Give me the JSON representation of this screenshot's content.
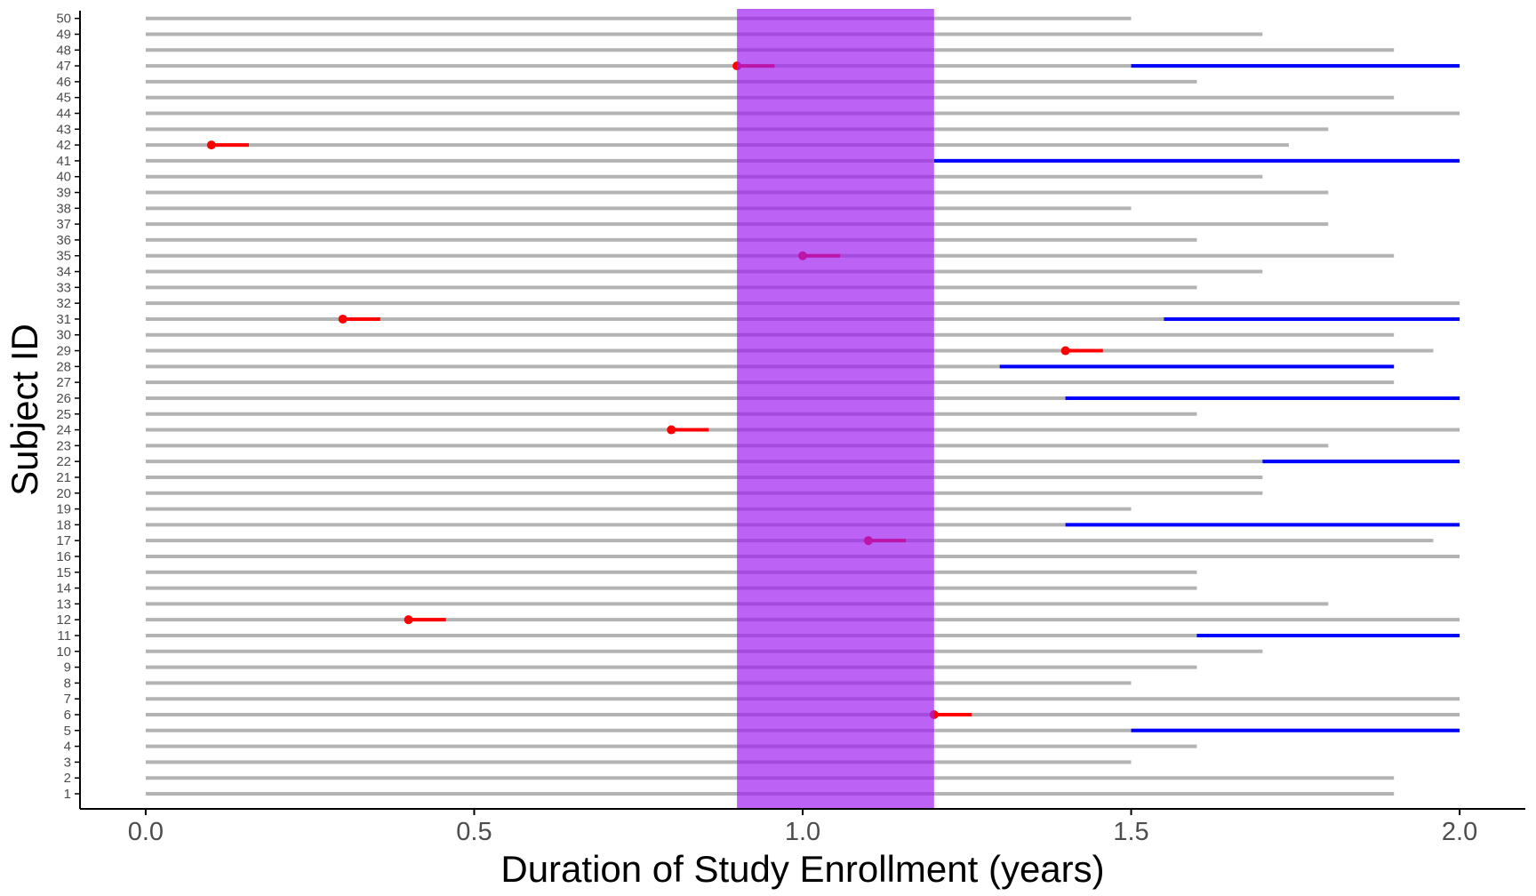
{
  "chart_data": {
    "type": "swimmer",
    "xlabel": "Duration of Study Enrollment (years)",
    "ylabel": "Subject ID",
    "xlim": [
      -0.1,
      2.1
    ],
    "xticks": [
      0.0,
      0.5,
      1.0,
      1.5,
      2.0
    ],
    "xtick_labels": [
      "0.0",
      "0.5",
      "1.0",
      "1.5",
      "2.0"
    ],
    "subjects": [
      1,
      2,
      3,
      4,
      5,
      6,
      7,
      8,
      9,
      10,
      11,
      12,
      13,
      14,
      15,
      16,
      17,
      18,
      19,
      20,
      21,
      22,
      23,
      24,
      25,
      26,
      27,
      28,
      29,
      30,
      31,
      32,
      33,
      34,
      35,
      36,
      37,
      38,
      39,
      40,
      41,
      42,
      43,
      44,
      45,
      46,
      47,
      48,
      49,
      50
    ],
    "enrollment_end": [
      1.9,
      1.9,
      1.5,
      1.6,
      2.0,
      2.0,
      2.0,
      1.5,
      1.6,
      1.7,
      2.0,
      2.0,
      1.8,
      1.6,
      1.6,
      2.0,
      1.96,
      2.0,
      1.5,
      1.7,
      1.7,
      2.0,
      1.8,
      2.0,
      1.6,
      2.0,
      1.9,
      1.9,
      1.96,
      1.9,
      2.0,
      2.0,
      1.6,
      1.7,
      1.9,
      1.6,
      1.8,
      1.5,
      1.8,
      1.7,
      2.0,
      1.74,
      1.8,
      2.0,
      1.9,
      1.6,
      2.0,
      1.9,
      1.7,
      1.5
    ],
    "blue_segments": [
      {
        "subject": 5,
        "start": 1.5,
        "end": 2.0
      },
      {
        "subject": 11,
        "start": 1.6,
        "end": 2.0
      },
      {
        "subject": 18,
        "start": 1.4,
        "end": 2.0
      },
      {
        "subject": 22,
        "start": 1.7,
        "end": 2.0
      },
      {
        "subject": 26,
        "start": 1.4,
        "end": 2.0
      },
      {
        "subject": 28,
        "start": 1.3,
        "end": 1.9
      },
      {
        "subject": 31,
        "start": 1.55,
        "end": 2.0
      },
      {
        "subject": 41,
        "start": 1.2,
        "end": 2.0
      },
      {
        "subject": 47,
        "start": 1.5,
        "end": 2.0
      }
    ],
    "events": [
      {
        "subject": 6,
        "time": 1.2
      },
      {
        "subject": 12,
        "time": 0.4
      },
      {
        "subject": 17,
        "time": 1.1
      },
      {
        "subject": 24,
        "time": 0.8
      },
      {
        "subject": 29,
        "time": 1.4
      },
      {
        "subject": 31,
        "time": 0.3
      },
      {
        "subject": 35,
        "time": 1.0
      },
      {
        "subject": 42,
        "time": 0.1
      },
      {
        "subject": 47,
        "time": 0.9
      }
    ],
    "event_tail_length": 0.057,
    "highlight_band": {
      "start": 0.9,
      "end": 1.2
    },
    "colors": {
      "enrollment": "#b3b3b3",
      "blue_segment": "#0000ff",
      "event": "#ff0000",
      "band": "#a020f0",
      "axis": "#000000"
    },
    "grid": false,
    "legend": "none"
  }
}
